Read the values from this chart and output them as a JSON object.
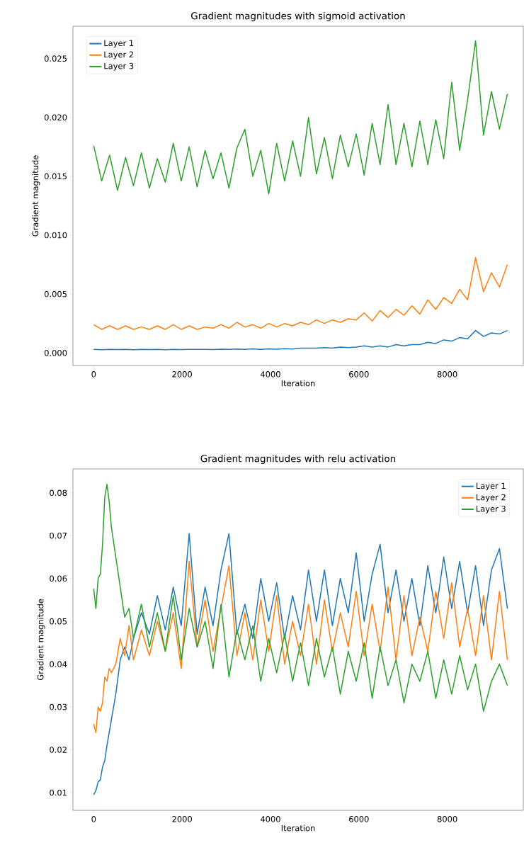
{
  "chart_data": [
    {
      "type": "line",
      "title": "Gradient magnitudes with sigmoid activation",
      "xlabel": "Iteration",
      "ylabel": "Gradient magnitude",
      "x": [
        0,
        180,
        360,
        540,
        720,
        900,
        1080,
        1260,
        1440,
        1620,
        1800,
        1980,
        2160,
        2340,
        2520,
        2700,
        2880,
        3060,
        3240,
        3420,
        3600,
        3780,
        3960,
        4140,
        4320,
        4500,
        4680,
        4860,
        5040,
        5220,
        5400,
        5580,
        5760,
        5940,
        6120,
        6300,
        6480,
        6660,
        6840,
        7020,
        7200,
        7380,
        7560,
        7740,
        7920,
        8100,
        8280,
        8460,
        8640,
        8820,
        9000,
        9180,
        9360
      ],
      "series": [
        {
          "name": "Layer 1",
          "color": "#1f77b4",
          "values": [
            0.0003,
            0.00027,
            0.0003,
            0.00028,
            0.0003,
            0.00027,
            0.0003,
            0.00028,
            0.0003,
            0.00027,
            0.0003,
            0.00028,
            0.0003,
            0.0003,
            0.0003,
            0.00028,
            0.00032,
            0.0003,
            0.00033,
            0.0003,
            0.00035,
            0.0003,
            0.00035,
            0.00032,
            0.00036,
            0.00033,
            0.0004,
            0.0004,
            0.0004,
            0.00045,
            0.0004,
            0.0005,
            0.00045,
            0.0005,
            0.0006,
            0.0005,
            0.0006,
            0.0005,
            0.0007,
            0.0006,
            0.0007,
            0.0007,
            0.0009,
            0.0008,
            0.0011,
            0.001,
            0.0013,
            0.0012,
            0.0019,
            0.0014,
            0.0017,
            0.0016,
            0.0019
          ]
        },
        {
          "name": "Layer 2",
          "color": "#ff7f0e",
          "values": [
            0.0024,
            0.002,
            0.0023,
            0.002,
            0.0023,
            0.002,
            0.0022,
            0.002,
            0.0023,
            0.002,
            0.0024,
            0.002,
            0.0023,
            0.002,
            0.0022,
            0.0021,
            0.0024,
            0.0021,
            0.0026,
            0.0022,
            0.0024,
            0.0021,
            0.0025,
            0.0022,
            0.0025,
            0.0023,
            0.0026,
            0.0024,
            0.0028,
            0.0025,
            0.0028,
            0.0026,
            0.0029,
            0.0028,
            0.0034,
            0.0027,
            0.0036,
            0.003,
            0.0037,
            0.0032,
            0.004,
            0.0033,
            0.0045,
            0.0037,
            0.0047,
            0.0042,
            0.0054,
            0.0045,
            0.0081,
            0.0052,
            0.0068,
            0.0056,
            0.0075
          ]
        },
        {
          "name": "Layer 3",
          "color": "#2ca02c",
          "values": [
            0.0176,
            0.0146,
            0.0168,
            0.0138,
            0.0166,
            0.0142,
            0.017,
            0.014,
            0.0165,
            0.0145,
            0.0178,
            0.0146,
            0.0175,
            0.0141,
            0.0172,
            0.0148,
            0.017,
            0.014,
            0.0174,
            0.019,
            0.015,
            0.0172,
            0.0135,
            0.0178,
            0.0146,
            0.018,
            0.015,
            0.02,
            0.0152,
            0.0183,
            0.0148,
            0.0185,
            0.0158,
            0.0186,
            0.0151,
            0.0195,
            0.016,
            0.0211,
            0.016,
            0.0195,
            0.0158,
            0.0197,
            0.016,
            0.0198,
            0.0165,
            0.023,
            0.0172,
            0.0215,
            0.0265,
            0.0185,
            0.0222,
            0.019,
            0.022
          ]
        }
      ],
      "xlim": [
        -470,
        9720
      ],
      "xticks": [
        0,
        2000,
        4000,
        6000,
        8000
      ],
      "ylim": [
        -0.00107,
        0.02775
      ],
      "yticks": [
        {
          "value": 0,
          "label": "0.000"
        },
        {
          "value": 0.005,
          "label": "0.005"
        },
        {
          "value": 0.01,
          "label": "0.010"
        },
        {
          "value": 0.015,
          "label": "0.015"
        },
        {
          "value": 0.02,
          "label": "0.020"
        },
        {
          "value": 0.025,
          "label": "0.025"
        }
      ],
      "legend": "top left"
    },
    {
      "type": "line",
      "title": "Gradient magnitudes with relu activation",
      "xlabel": "Iteration",
      "ylabel": "Gradient magnitude",
      "x": [
        0,
        50,
        100,
        150,
        200,
        250,
        300,
        350,
        400,
        500,
        600,
        700,
        800,
        900,
        1080,
        1260,
        1440,
        1620,
        1800,
        1980,
        2160,
        2340,
        2520,
        2700,
        2880,
        3060,
        3240,
        3420,
        3600,
        3780,
        3960,
        4140,
        4320,
        4500,
        4680,
        4860,
        5040,
        5220,
        5400,
        5580,
        5760,
        5940,
        6120,
        6300,
        6480,
        6660,
        6840,
        7020,
        7200,
        7380,
        7560,
        7740,
        7920,
        8100,
        8280,
        8460,
        8640,
        8820,
        9000,
        9180,
        9360
      ],
      "series": [
        {
          "name": "Layer 1",
          "color": "#1f77b4",
          "values": [
            0.0095,
            0.0105,
            0.0125,
            0.013,
            0.016,
            0.0175,
            0.021,
            0.024,
            0.027,
            0.033,
            0.041,
            0.044,
            0.041,
            0.046,
            0.052,
            0.047,
            0.056,
            0.048,
            0.058,
            0.049,
            0.0705,
            0.047,
            0.058,
            0.049,
            0.062,
            0.0705,
            0.047,
            0.054,
            0.046,
            0.06,
            0.05,
            0.059,
            0.046,
            0.056,
            0.048,
            0.062,
            0.05,
            0.062,
            0.049,
            0.06,
            0.052,
            0.066,
            0.05,
            0.061,
            0.068,
            0.052,
            0.062,
            0.05,
            0.06,
            0.049,
            0.063,
            0.052,
            0.065,
            0.053,
            0.064,
            0.052,
            0.063,
            0.049,
            0.062,
            0.067,
            0.053
          ]
        },
        {
          "name": "Layer 2",
          "color": "#ff7f0e",
          "values": [
            0.026,
            0.024,
            0.03,
            0.029,
            0.031,
            0.037,
            0.036,
            0.039,
            0.038,
            0.04,
            0.046,
            0.042,
            0.049,
            0.041,
            0.048,
            0.042,
            0.05,
            0.043,
            0.052,
            0.039,
            0.064,
            0.044,
            0.055,
            0.043,
            0.053,
            0.063,
            0.042,
            0.052,
            0.041,
            0.055,
            0.043,
            0.056,
            0.04,
            0.05,
            0.042,
            0.054,
            0.04,
            0.055,
            0.043,
            0.052,
            0.044,
            0.057,
            0.042,
            0.054,
            0.043,
            0.058,
            0.041,
            0.056,
            0.042,
            0.051,
            0.043,
            0.057,
            0.046,
            0.059,
            0.044,
            0.053,
            0.042,
            0.056,
            0.041,
            0.057,
            0.041
          ]
        },
        {
          "name": "Layer 3",
          "color": "#2ca02c",
          "values": [
            0.0576,
            0.053,
            0.06,
            0.061,
            0.068,
            0.079,
            0.082,
            0.078,
            0.072,
            0.065,
            0.058,
            0.051,
            0.053,
            0.046,
            0.054,
            0.044,
            0.052,
            0.043,
            0.056,
            0.041,
            0.053,
            0.044,
            0.05,
            0.039,
            0.054,
            0.037,
            0.048,
            0.041,
            0.049,
            0.036,
            0.046,
            0.038,
            0.047,
            0.036,
            0.045,
            0.035,
            0.046,
            0.037,
            0.044,
            0.033,
            0.043,
            0.036,
            0.045,
            0.032,
            0.044,
            0.035,
            0.041,
            0.031,
            0.04,
            0.036,
            0.043,
            0.032,
            0.041,
            0.033,
            0.042,
            0.034,
            0.04,
            0.029,
            0.036,
            0.04,
            0.035
          ]
        }
      ],
      "xlim": [
        -470,
        9720
      ],
      "xticks": [
        0,
        2000,
        4000,
        6000,
        8000
      ],
      "ylim": [
        0.00586,
        0.0856
      ],
      "yticks": [
        0.01,
        0.02,
        0.03,
        0.04,
        0.05,
        0.06,
        0.07,
        0.08
      ],
      "legend": "top right"
    }
  ]
}
